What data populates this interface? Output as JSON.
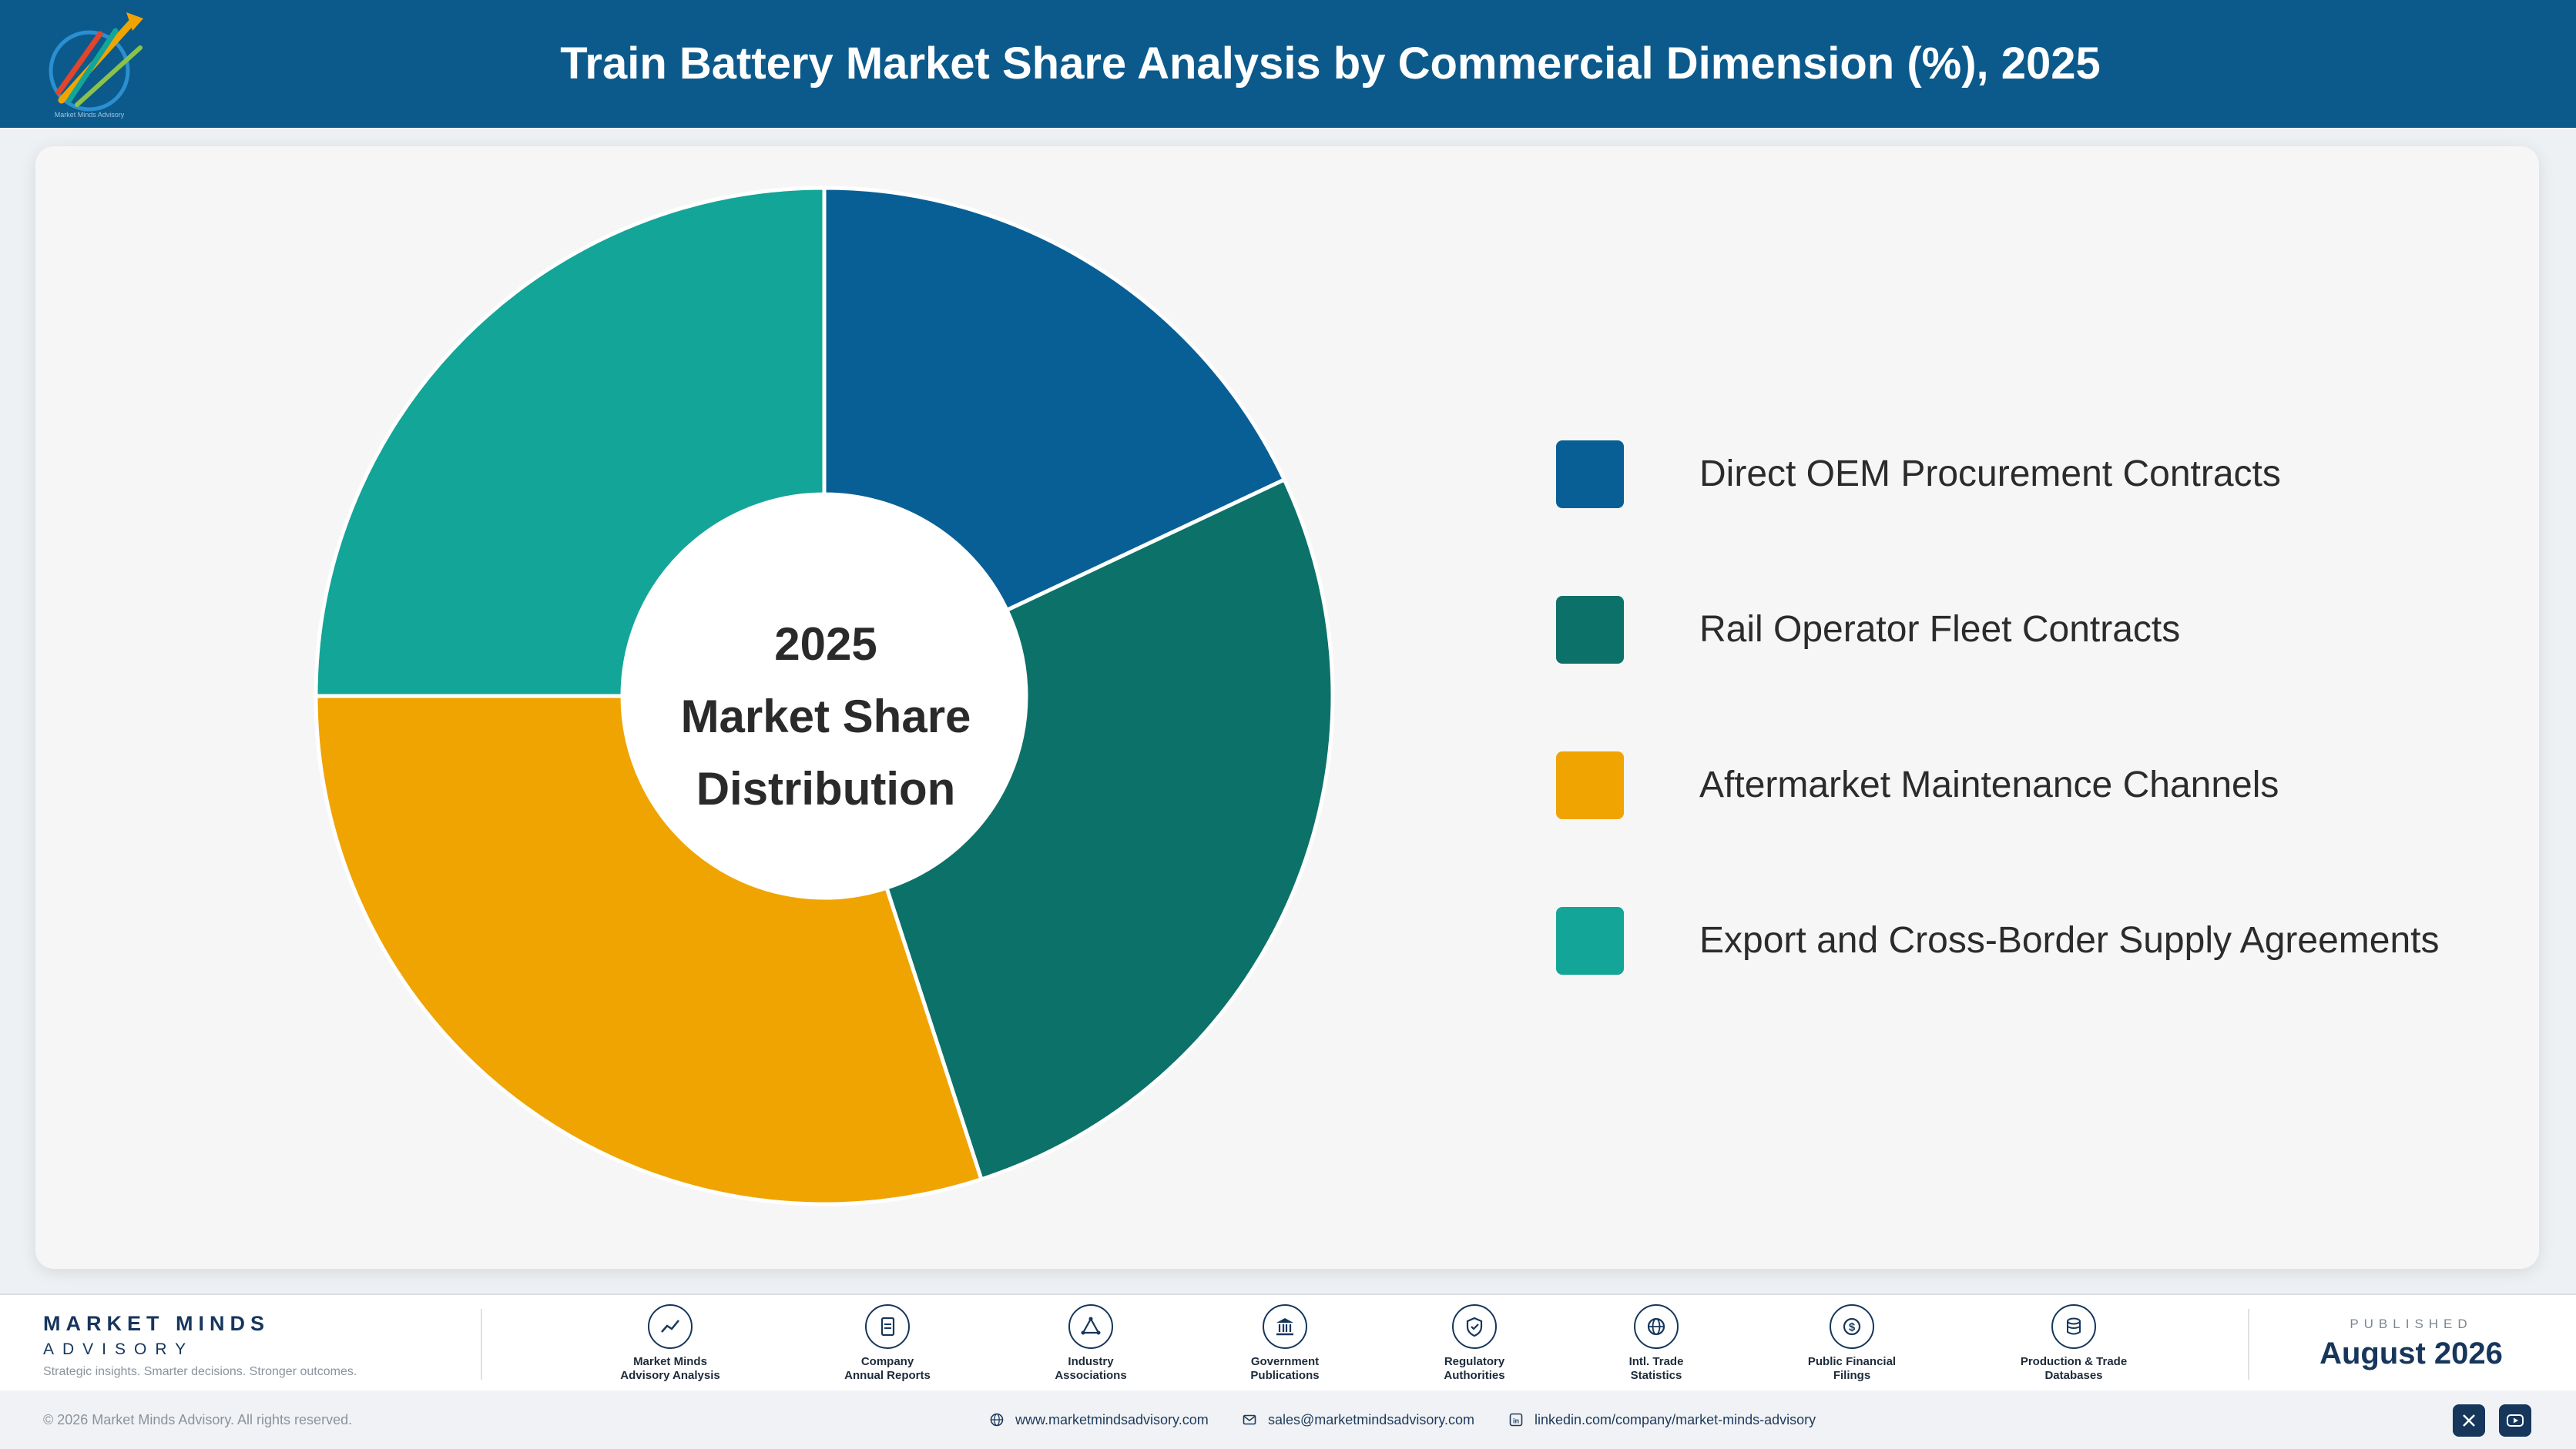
{
  "header": {
    "title": "Train Battery Market Share Analysis by Commercial Dimension (%), 2025",
    "logo_icon": "market-minds-logo-icon",
    "logo_caption": "Market Minds Advisory"
  },
  "chart_data": {
    "type": "pie",
    "variant": "donut",
    "title": "Train Battery Market Share Analysis by Commercial Dimension (%), 2025",
    "center_label": [
      "2025",
      "Market Share",
      "Distribution"
    ],
    "categories": [
      "Direct OEM Procurement Contracts",
      "Rail Operator Fleet Contracts",
      "Aftermarket Maintenance Channels",
      "Export and Cross-Border Supply Agreements"
    ],
    "values": [
      18,
      27,
      30,
      25
    ],
    "unit": "%",
    "colors": [
      "#085f96",
      "#0c7169",
      "#f0a402",
      "#13a597"
    ],
    "legend_position": "right"
  },
  "footer": {
    "brand_name": "MARKET MINDS",
    "brand_sub": "ADVISORY",
    "brand_tagline": "Strategic insights. Smarter decisions. Stronger outcomes.",
    "sources": [
      {
        "label": "Market Minds\nAdvisory Analysis",
        "icon": "trend-line-icon"
      },
      {
        "label": "Company\nAnnual Reports",
        "icon": "document-icon"
      },
      {
        "label": "Industry\nAssociations",
        "icon": "network-icon"
      },
      {
        "label": "Government\nPublications",
        "icon": "government-building-icon"
      },
      {
        "label": "Regulatory\nAuthorities",
        "icon": "shield-check-icon"
      },
      {
        "label": "Intl. Trade\nStatistics",
        "icon": "globe-icon"
      },
      {
        "label": "Public Financial\nFilings",
        "icon": "dollar-coin-icon"
      },
      {
        "label": "Production & Trade\nDatabases",
        "icon": "database-icon"
      }
    ],
    "published_caption": "PUBLISHED",
    "published_date": "August 2026",
    "copyright": "© 2026 Market Minds Advisory. All rights reserved.",
    "website": "www.marketmindsadvisory.com",
    "email": "sales@marketmindsadvisory.com",
    "linkedin": "linkedin.com/company/market-minds-advisory",
    "social": [
      "x-icon",
      "youtube-icon"
    ]
  }
}
